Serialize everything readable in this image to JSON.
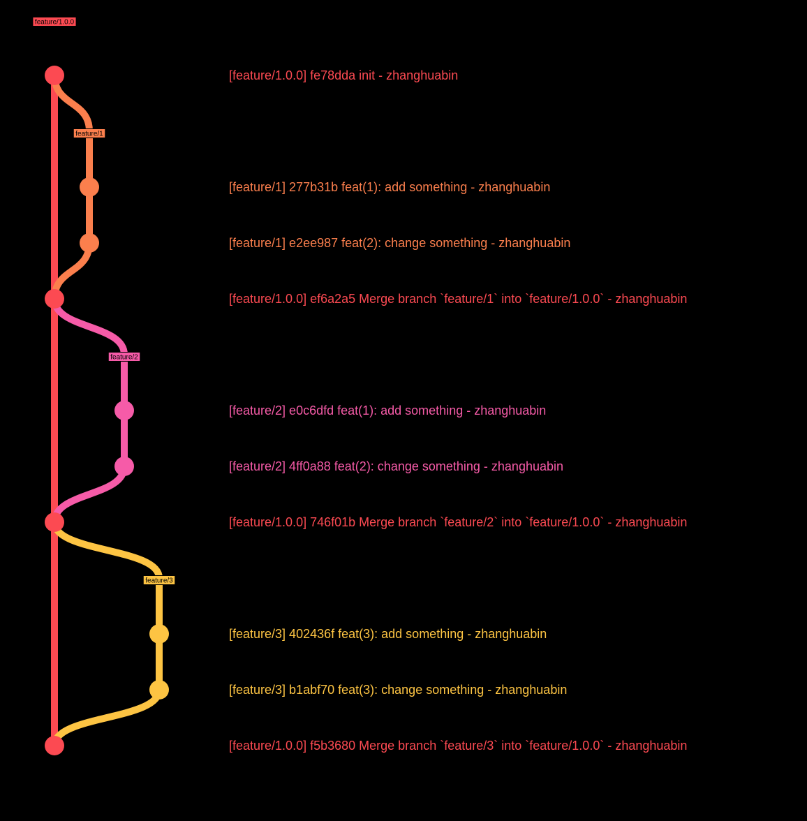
{
  "branches": [
    {
      "id": "main",
      "name": "feature/1.0.0",
      "color": "#fc4a52",
      "tag_text_color": "#000000"
    },
    {
      "id": "f1",
      "name": "feature/1",
      "color": "#fb7f4d",
      "tag_text_color": "#000000"
    },
    {
      "id": "f2",
      "name": "feature/2",
      "color": "#f65ba8",
      "tag_text_color": "#000000"
    },
    {
      "id": "f3",
      "name": "feature/3",
      "color": "#fdc443",
      "tag_text_color": "#000000"
    }
  ],
  "commits": [
    {
      "branch": "main",
      "text": "[feature/1.0.0] fe78dda init - zhanghuabin"
    },
    {
      "branch": "f1",
      "text": "[feature/1] 277b31b feat(1): add something - zhanghuabin"
    },
    {
      "branch": "f1",
      "text": "[feature/1] e2ee987 feat(2): change something - zhanghuabin"
    },
    {
      "branch": "main",
      "text": "[feature/1.0.0] ef6a2a5 Merge branch `feature/1` into `feature/1.0.0` - zhanghuabin",
      "merge_from": "f1"
    },
    {
      "branch": "f2",
      "text": "[feature/2] e0c6dfd feat(1): add something - zhanghuabin"
    },
    {
      "branch": "f2",
      "text": "[feature/2] 4ff0a88 feat(2): change something - zhanghuabin"
    },
    {
      "branch": "main",
      "text": "[feature/1.0.0] 746f01b Merge branch `feature/2` into `feature/1.0.0` - zhanghuabin",
      "merge_from": "f2"
    },
    {
      "branch": "f3",
      "text": "[feature/3] 402436f feat(3): add something - zhanghuabin"
    },
    {
      "branch": "f3",
      "text": "[feature/3] b1abf70 feat(3): change something - zhanghuabin"
    },
    {
      "branch": "main",
      "text": "[feature/1.0.0] f5b3680 Merge branch `feature/3` into `feature/1.0.0` - zhanghuabin",
      "merge_from": "f3"
    }
  ]
}
